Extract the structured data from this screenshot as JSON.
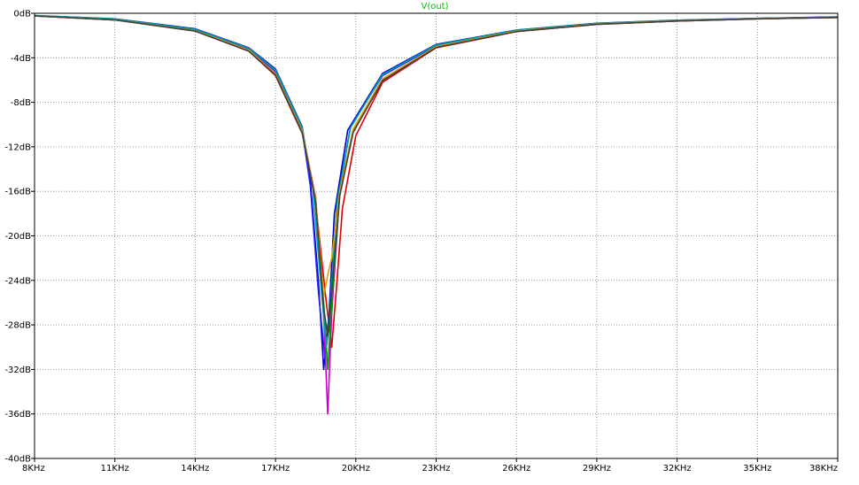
{
  "window": {
    "background": "#ffffff"
  },
  "chart_data": {
    "type": "line",
    "title": "V(out)",
    "title_color": "#00c000",
    "xlabel": "",
    "ylabel": "",
    "x_scale": "linear",
    "x_unit": "KHz",
    "y_unit": "dB",
    "xlim": [
      8,
      38
    ],
    "ylim": [
      -40,
      0
    ],
    "grid": "dotted",
    "x_tick_values": [
      8,
      11,
      14,
      17,
      20,
      23,
      26,
      29,
      32,
      35,
      38
    ],
    "x_tick_labels": [
      "8KHz",
      "11KHz",
      "14KHz",
      "17KHz",
      "20KHz",
      "23KHz",
      "26KHz",
      "29KHz",
      "32KHz",
      "35KHz",
      "38KHz"
    ],
    "y_tick_values": [
      0,
      -4,
      -8,
      -12,
      -16,
      -20,
      -24,
      -28,
      -32,
      -36,
      -40
    ],
    "y_tick_labels": [
      "0dB",
      "-4dB",
      "-8dB",
      "-12dB",
      "-16dB",
      "-20dB",
      "-24dB",
      "-28dB",
      "-32dB",
      "-36dB",
      "-40dB"
    ],
    "series": [
      {
        "color": "#e00000",
        "x": [
          8,
          11,
          14,
          16,
          17,
          18,
          18.5,
          18.9,
          19.1,
          19.3,
          19.5,
          20,
          21,
          23,
          26,
          29,
          32,
          35,
          38
        ],
        "y": [
          -0.25,
          -0.6,
          -1.6,
          -3.4,
          -5.6,
          -10.8,
          -17,
          -26,
          -30,
          -24,
          -17.5,
          -11,
          -6.2,
          -3.1,
          -1.65,
          -1.0,
          -0.7,
          -0.5,
          -0.38
        ]
      },
      {
        "color": "#0000cc",
        "x": [
          8,
          11,
          14,
          16,
          17,
          18,
          18.3,
          18.6,
          18.8,
          19.0,
          19.2,
          19.7,
          21,
          23,
          26,
          29,
          32,
          35,
          38
        ],
        "y": [
          -0.2,
          -0.5,
          -1.4,
          -3.1,
          -5.0,
          -10.2,
          -15,
          -24,
          -32,
          -27,
          -18,
          -10.5,
          -5.4,
          -2.8,
          -1.5,
          -0.9,
          -0.62,
          -0.45,
          -0.33
        ]
      },
      {
        "color": "#2020ff",
        "x": [
          8,
          11,
          14,
          16,
          17,
          18,
          18.3,
          18.6,
          18.85,
          19.0,
          19.3,
          19.8,
          21,
          23,
          26,
          29,
          32,
          35,
          38
        ],
        "y": [
          -0.22,
          -0.55,
          -1.5,
          -3.2,
          -5.2,
          -10.5,
          -15.5,
          -25,
          -31,
          -28,
          -17,
          -10.2,
          -5.6,
          -2.9,
          -1.55,
          -0.95,
          -0.65,
          -0.47,
          -0.35
        ]
      },
      {
        "color": "#cc00cc",
        "x": [
          8,
          11,
          14,
          16,
          17,
          18,
          18.5,
          18.8,
          18.95,
          19.1,
          19.4,
          19.9,
          21,
          23,
          26,
          29,
          32,
          35,
          38
        ],
        "y": [
          -0.23,
          -0.58,
          -1.55,
          -3.3,
          -5.4,
          -10.6,
          -16.5,
          -27,
          -36,
          -27,
          -16,
          -10.5,
          -5.9,
          -3.0,
          -1.6,
          -0.97,
          -0.67,
          -0.48,
          -0.36
        ]
      },
      {
        "color": "#00a000",
        "x": [
          8,
          11,
          14,
          16,
          17,
          18,
          18.5,
          18.8,
          18.95,
          19.1,
          19.4,
          19.9,
          21,
          23,
          26,
          29,
          32,
          35,
          38
        ],
        "y": [
          -0.24,
          -0.6,
          -1.58,
          -3.35,
          -5.5,
          -10.7,
          -16.8,
          -26,
          -32,
          -26,
          -16.2,
          -10.6,
          -6.0,
          -3.05,
          -1.62,
          -0.98,
          -0.68,
          -0.49,
          -0.37
        ]
      },
      {
        "color": "#00a0a0",
        "x": [
          8,
          11,
          14,
          16,
          17,
          18,
          18.4,
          18.7,
          18.9,
          19.05,
          19.3,
          19.8,
          21,
          23,
          26,
          29,
          32,
          35,
          38
        ],
        "y": [
          -0.21,
          -0.52,
          -1.45,
          -3.15,
          -5.1,
          -10.3,
          -15.8,
          -24.5,
          -30,
          -26,
          -17,
          -10.3,
          -5.5,
          -2.85,
          -1.52,
          -0.92,
          -0.63,
          -0.46,
          -0.34
        ]
      },
      {
        "color": "#e0a000",
        "x": [
          8,
          11,
          14,
          16,
          17,
          18,
          18.5,
          18.8,
          18.95,
          19.1,
          19.4,
          19.9,
          21,
          23,
          26,
          29,
          32,
          35,
          38
        ],
        "y": [
          -0.24,
          -0.59,
          -1.57,
          -3.32,
          -5.45,
          -10.6,
          -16.6,
          -25.5,
          -23.5,
          -22,
          -16,
          -10.4,
          -5.9,
          -3.0,
          -1.6,
          -0.97,
          -0.67,
          -0.48,
          -0.36
        ]
      },
      {
        "color": "#404040",
        "x": [
          8,
          11,
          14,
          16,
          17,
          18,
          18.5,
          18.8,
          18.95,
          19.1,
          19.4,
          19.9,
          21,
          23,
          26,
          29,
          32,
          35,
          38
        ],
        "y": [
          -0.24,
          -0.6,
          -1.6,
          -3.4,
          -5.55,
          -10.75,
          -16.9,
          -26.5,
          -29,
          -25,
          -16.4,
          -10.7,
          -6.05,
          -3.08,
          -1.64,
          -0.99,
          -0.69,
          -0.5,
          -0.37
        ]
      }
    ]
  }
}
